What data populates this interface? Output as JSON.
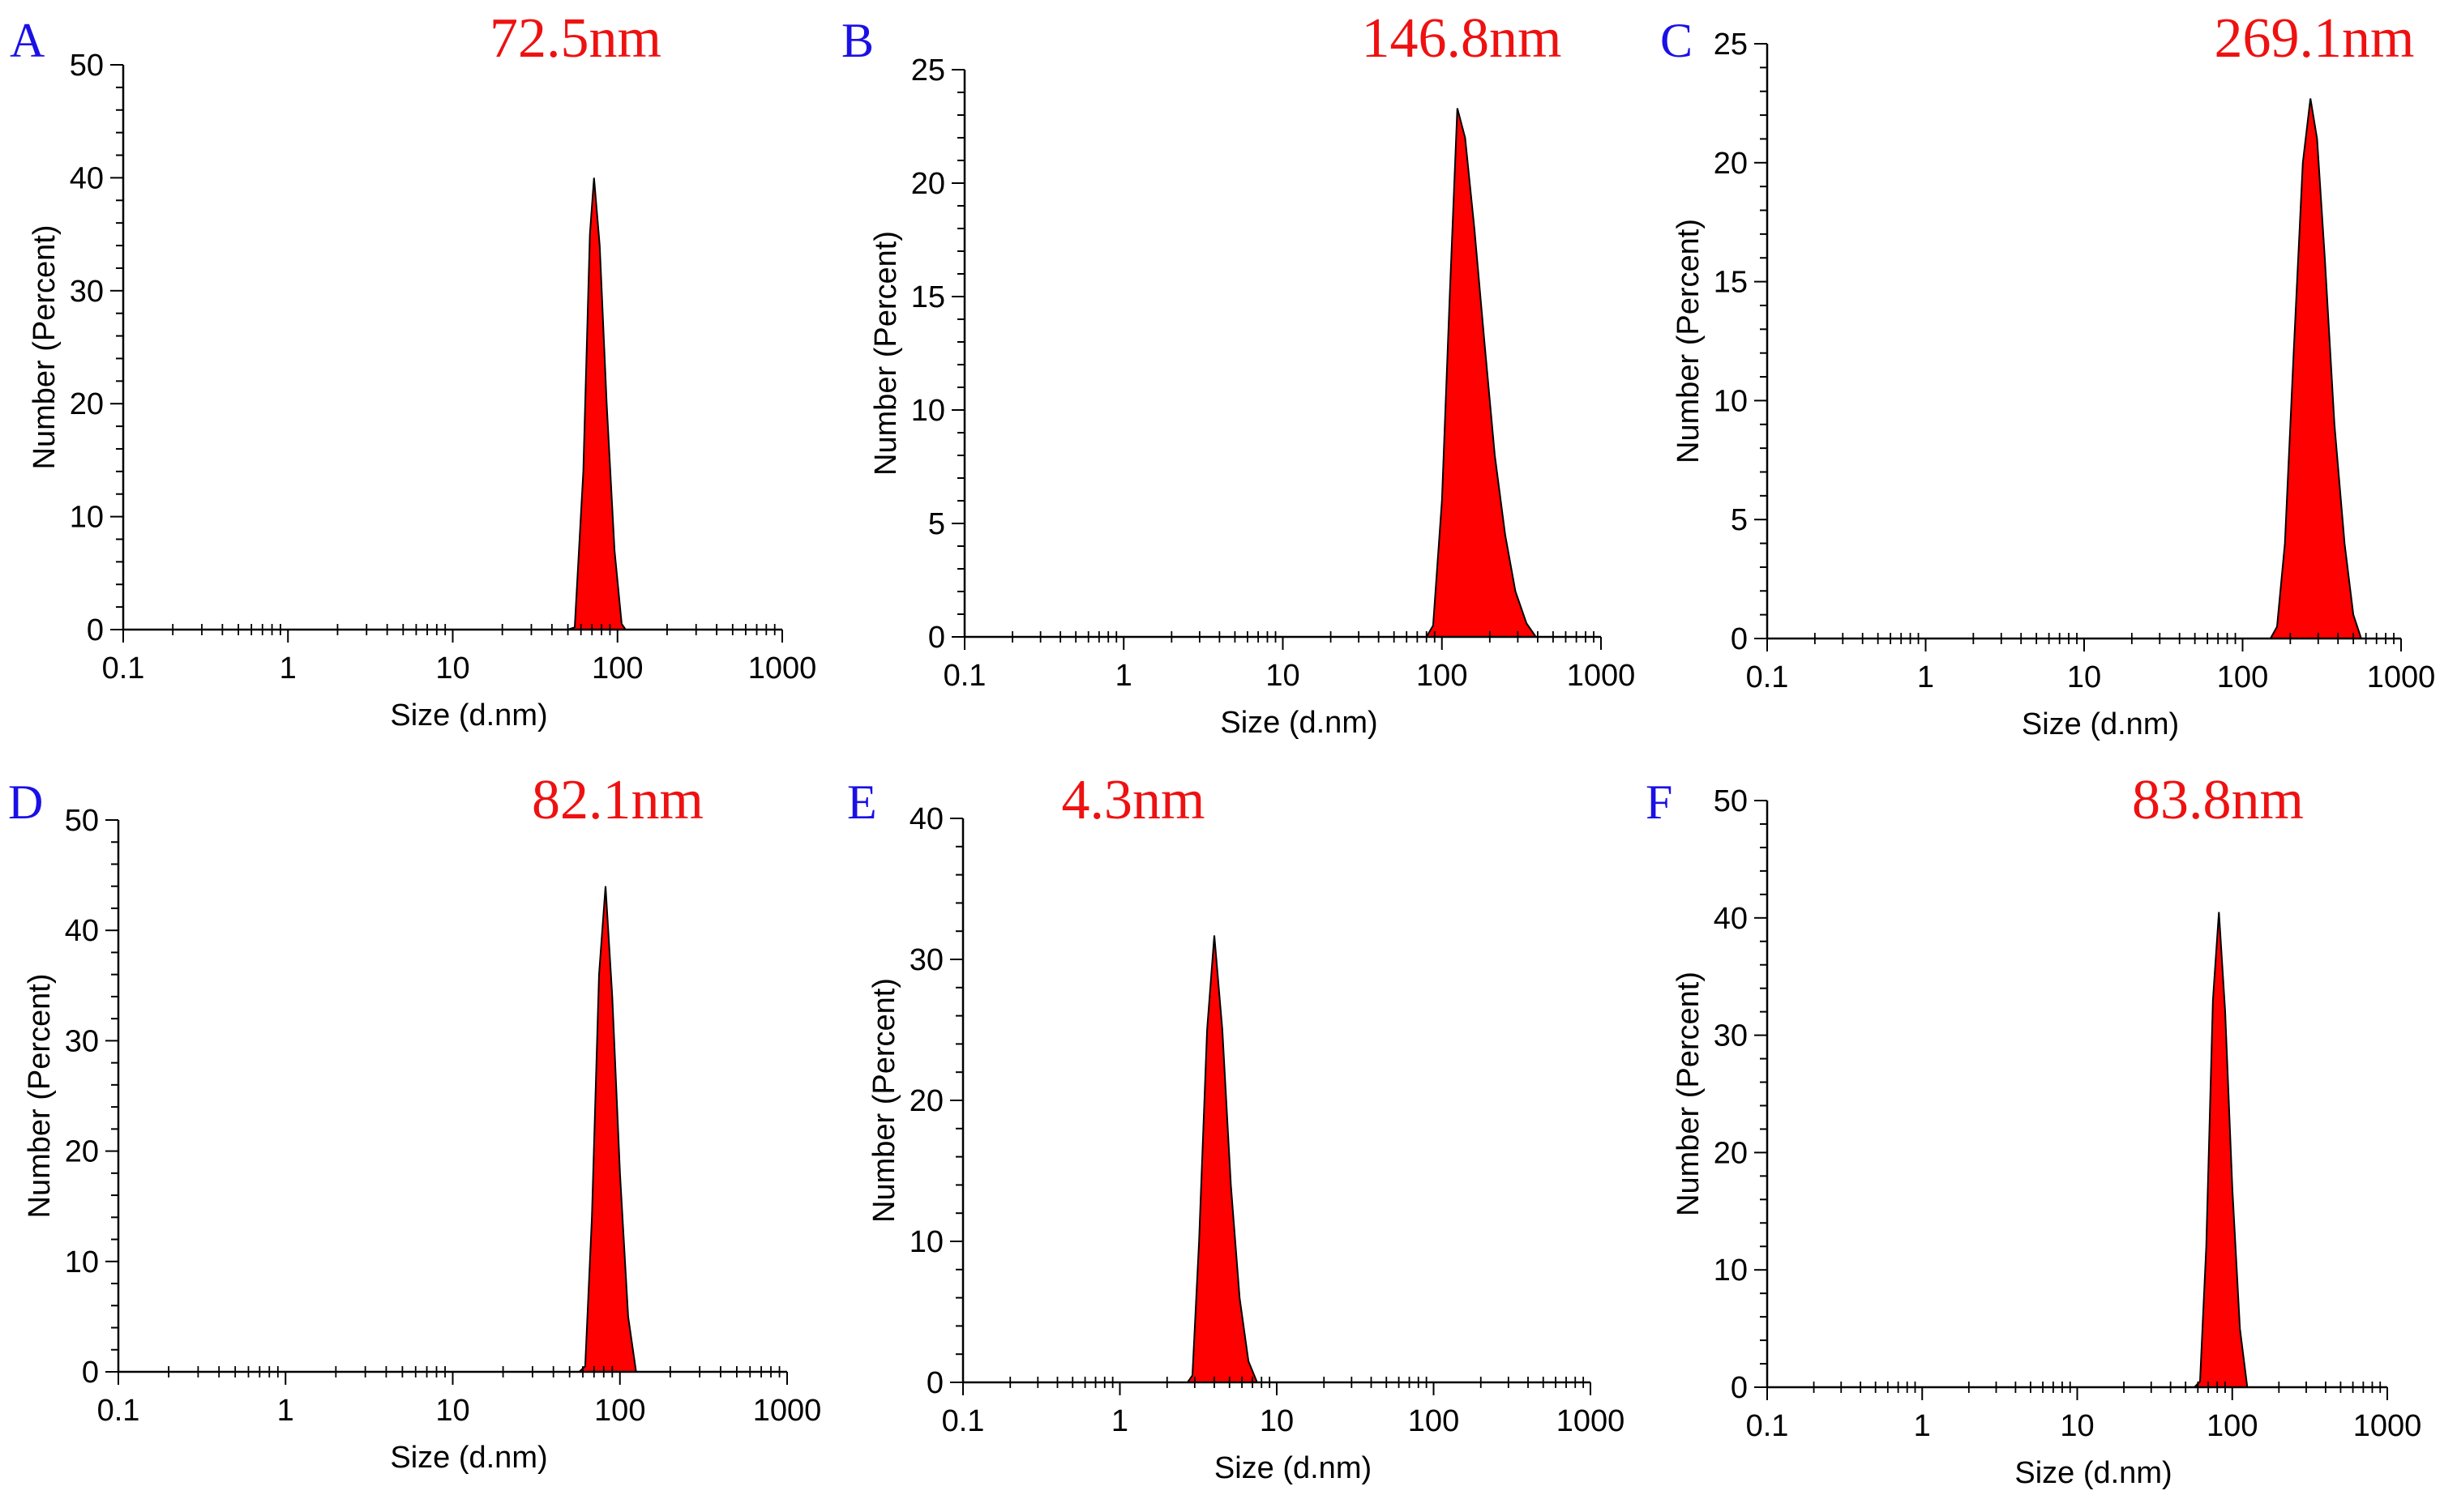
{
  "figure_panels": [
    "A",
    "B",
    "C",
    "D",
    "E",
    "F"
  ],
  "colors": {
    "fill": "#ff0000",
    "panel_letter": "#1a10e6",
    "size_label": "#ee1111",
    "axis": "#000000"
  },
  "chart_data": [
    {
      "panel": "A",
      "type": "area",
      "size_label": "72.5nm",
      "xlabel": "Size (d.nm)",
      "ylabel": "Number (Percent)",
      "xscale": "log",
      "xlim": [
        0.1,
        1000
      ],
      "ylim": [
        0,
        50
      ],
      "xticks": [
        "0.1",
        "1",
        "10",
        "100",
        "1000"
      ],
      "yticks": [
        "0",
        "10",
        "20",
        "30",
        "40",
        "50"
      ],
      "x": [
        0.4,
        50,
        55,
        62,
        68,
        72,
        78,
        86,
        96,
        106,
        112,
        1000
      ],
      "y": [
        0,
        0,
        0.2,
        14,
        35,
        40,
        34,
        20,
        7,
        0.5,
        0,
        0
      ]
    },
    {
      "panel": "B",
      "type": "area",
      "size_label": "146.8nm",
      "xlabel": "Size (d.nm)",
      "ylabel": "Number (Percent)",
      "xscale": "log",
      "xlim": [
        0.1,
        1000
      ],
      "ylim": [
        0,
        25
      ],
      "xticks": [
        "0.1",
        "1",
        "10",
        "100",
        "1000"
      ],
      "yticks": [
        "0",
        "5",
        "10",
        "15",
        "20",
        "25"
      ],
      "x": [
        0.4,
        80,
        88,
        100,
        112,
        125,
        140,
        160,
        185,
        215,
        250,
        290,
        340,
        390,
        1000
      ],
      "y": [
        0,
        0,
        0.5,
        6,
        15,
        23.3,
        22,
        18,
        13,
        8,
        4.5,
        2,
        0.6,
        0,
        0
      ]
    },
    {
      "panel": "C",
      "type": "area",
      "size_label": "269.1nm",
      "xlabel": "Size (d.nm)",
      "ylabel": "Number (Percent)",
      "xscale": "log",
      "xlim": [
        0.1,
        1000
      ],
      "ylim": [
        0,
        25
      ],
      "xticks": [
        "0.1",
        "1",
        "10",
        "100",
        "1000"
      ],
      "yticks": [
        "0",
        "5",
        "10",
        "15",
        "20",
        "25"
      ],
      "x": [
        0.4,
        150,
        165,
        185,
        210,
        240,
        268,
        295,
        330,
        380,
        440,
        500,
        560,
        1000
      ],
      "y": [
        0,
        0,
        0.5,
        4,
        12,
        20,
        22.7,
        21,
        16,
        9,
        4,
        1,
        0,
        0
      ]
    },
    {
      "panel": "D",
      "type": "area",
      "size_label": "82.1nm",
      "xlabel": "Size (d.nm)",
      "ylabel": "Number (Percent)",
      "xscale": "log",
      "xlim": [
        0.1,
        1000
      ],
      "ylim": [
        0,
        50
      ],
      "xticks": [
        "0.1",
        "1",
        "10",
        "100",
        "1000"
      ],
      "yticks": [
        "0",
        "10",
        "20",
        "30",
        "40",
        "50"
      ],
      "x": [
        0.4,
        57,
        62,
        68,
        75,
        82,
        90,
        100,
        112,
        125,
        1000
      ],
      "y": [
        0,
        0,
        0.5,
        14,
        36,
        44,
        34,
        18,
        5,
        0,
        0
      ]
    },
    {
      "panel": "E",
      "type": "area",
      "size_label": "4.3nm",
      "xlabel": "Size (d.nm)",
      "ylabel": "Number (Percent)",
      "xscale": "log",
      "xlim": [
        0.1,
        1000
      ],
      "ylim": [
        0,
        40
      ],
      "xticks": [
        "0.1",
        "1",
        "10",
        "100",
        "1000"
      ],
      "yticks": [
        "0",
        "10",
        "20",
        "30",
        "40"
      ],
      "x": [
        0.4,
        2.7,
        2.9,
        3.2,
        3.6,
        4.0,
        4.5,
        5.1,
        5.8,
        6.6,
        7.5,
        1000
      ],
      "y": [
        0,
        0,
        0.5,
        10,
        25,
        31.7,
        25,
        14,
        6,
        1.5,
        0,
        0
      ]
    },
    {
      "panel": "F",
      "type": "area",
      "size_label": "83.8nm",
      "xlabel": "Size (d.nm)",
      "ylabel": "Number (Percent)",
      "xscale": "log",
      "xlim": [
        0.1,
        1000
      ],
      "ylim": [
        0,
        50
      ],
      "xticks": [
        "0.1",
        "1",
        "10",
        "100",
        "1000"
      ],
      "yticks": [
        "0",
        "10",
        "20",
        "30",
        "40",
        "50"
      ],
      "x": [
        0.4,
        57,
        62,
        68,
        75,
        82,
        90,
        100,
        112,
        125,
        1000
      ],
      "y": [
        0,
        0,
        0.5,
        12,
        33,
        40.5,
        32,
        17,
        5,
        0,
        0
      ]
    }
  ]
}
